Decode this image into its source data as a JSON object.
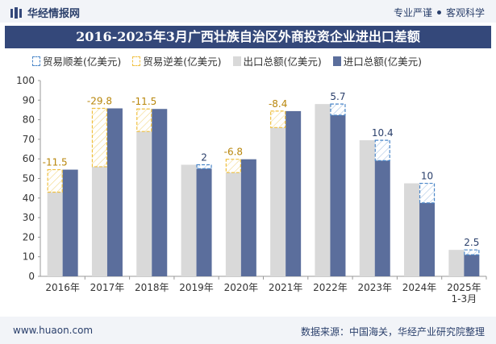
{
  "header": {
    "brand": "华经情报网",
    "tag1": "专业严谨",
    "tag2": "客观科学"
  },
  "footer": {
    "site": "www.huaon.com",
    "source": "数据来源：中国海关，华经产业研究院整理"
  },
  "legend": {
    "surplus": "贸易顺差(亿美元)",
    "deficit": "贸易逆差(亿美元)",
    "export": "出口总额(亿美元)",
    "import": "进口总额(亿美元)"
  },
  "colors": {
    "export": "#d9d9d9",
    "import": "#5b6e9c",
    "surplus": "#4a86c8",
    "deficit": "#f0c040",
    "title_bg": "#34487a"
  },
  "chart_data": {
    "type": "bar",
    "title": "2016-2025年3月广西壮族自治区外商投资企业进出口差额",
    "categories": [
      "2016年",
      "2017年",
      "2018年",
      "2019年",
      "2020年",
      "2021年",
      "2022年",
      "2023年",
      "2024年",
      "2025年\n1-3月"
    ],
    "series": [
      {
        "name": "出口总额(亿美元)",
        "values": [
          43,
          56,
          74,
          57,
          53,
          76,
          88,
          69.5,
          47.5,
          13.5
        ]
      },
      {
        "name": "进口总额(亿美元)",
        "values": [
          54.5,
          85.8,
          85.5,
          55,
          59.8,
          84.4,
          82.3,
          59.1,
          37.5,
          11
        ]
      }
    ],
    "balance": [
      -11.5,
      -29.8,
      -11.5,
      2,
      -6.8,
      -8.4,
      5.7,
      10.4,
      10,
      2.5
    ],
    "balance_labels": [
      "-11.5",
      "-29.8",
      "-11.5",
      "2",
      "-6.8",
      "-8.4",
      "5.7",
      "10.4",
      "10",
      "2.5"
    ],
    "ylim": [
      0,
      100
    ],
    "yticks": [
      0,
      10,
      20,
      30,
      40,
      50,
      60,
      70,
      80,
      90,
      100
    ],
    "legend_position": "top",
    "grid": false
  }
}
